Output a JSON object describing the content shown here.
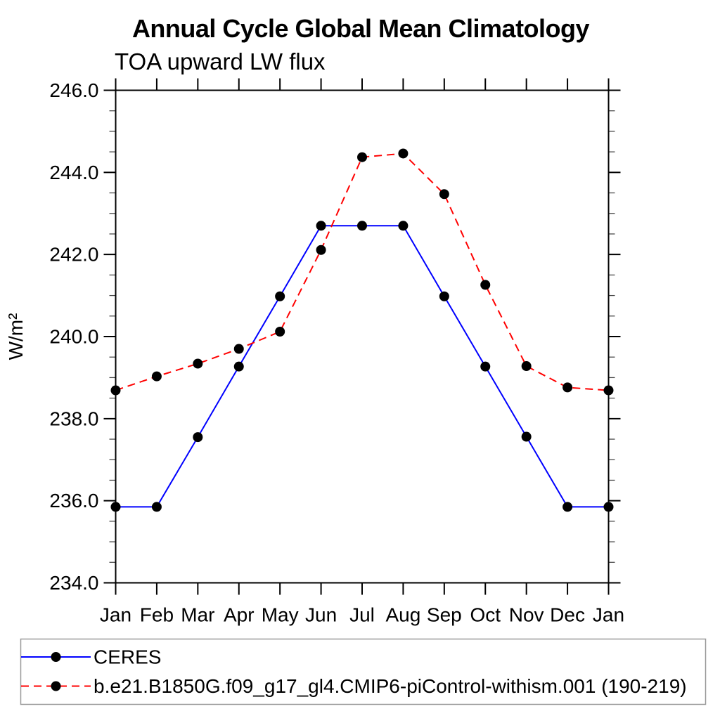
{
  "page": {
    "background_color": "#ffffff"
  },
  "chart_data": {
    "type": "line",
    "title": "Annual Cycle Global Mean Climatology",
    "subtitle": "TOA upward LW flux",
    "ylabel": "W/m²",
    "xlabel": "",
    "x_tick_labels": [
      "Jan",
      "Feb",
      "Mar",
      "Apr",
      "May",
      "Jun",
      "Jul",
      "Aug",
      "Sep",
      "Oct",
      "Nov",
      "Dec",
      "Jan"
    ],
    "ylim": [
      234.0,
      246.0
    ],
    "y_major_ticks": [
      246.0,
      244.0,
      242.0,
      240.0,
      238.0,
      236.0,
      234.0
    ],
    "y_major_tick_labels": [
      "246.0",
      "244.0",
      "242.0",
      "240.0",
      "238.0",
      "236.0",
      "234.0"
    ],
    "y_minor_step": 0.5,
    "grid": false,
    "legend_position": "bottom-left-box",
    "frame_color": "#000000",
    "marker": "filled-circle",
    "marker_color": "#000000",
    "series": [
      {
        "name": "CERES",
        "color": "#0000ff",
        "line_style": "solid",
        "values": [
          235.85,
          235.85,
          237.55,
          239.27,
          240.98,
          242.7,
          242.7,
          242.7,
          240.98,
          239.27,
          237.56,
          235.85,
          235.85
        ]
      },
      {
        "name": "b.e21.B1850G.f09_g17_gl4.CMIP6-piControl-withism.001 (190-219)",
        "color": "#ff0000",
        "line_style": "dashed",
        "values": [
          238.69,
          239.03,
          239.34,
          239.7,
          240.12,
          242.11,
          244.37,
          244.46,
          243.47,
          241.26,
          239.28,
          238.76,
          238.69
        ]
      }
    ]
  }
}
